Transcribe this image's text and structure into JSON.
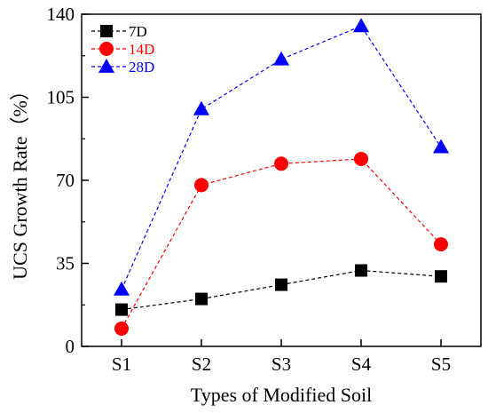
{
  "chart_data": {
    "type": "line",
    "title": "",
    "xlabel": "Types of Modified Soil",
    "ylabel": "UCS Growth Rate（%）",
    "categories": [
      "S1",
      "S2",
      "S3",
      "S4",
      "S5"
    ],
    "ylim": [
      0,
      140
    ],
    "yticks": [
      0,
      35,
      70,
      105,
      140
    ],
    "grid": false,
    "legend_position": "top-left",
    "series": [
      {
        "name": "7D",
        "values": [
          15.5,
          20,
          26,
          32,
          29.5
        ],
        "color": "#000000",
        "marker": "square"
      },
      {
        "name": "14D",
        "values": [
          7.5,
          68,
          77,
          79,
          43
        ],
        "color": "#ff0000",
        "marker": "circle"
      },
      {
        "name": "28D",
        "values": [
          24,
          100,
          121,
          135,
          84
        ],
        "color": "#0000ff",
        "marker": "triangle"
      }
    ]
  }
}
